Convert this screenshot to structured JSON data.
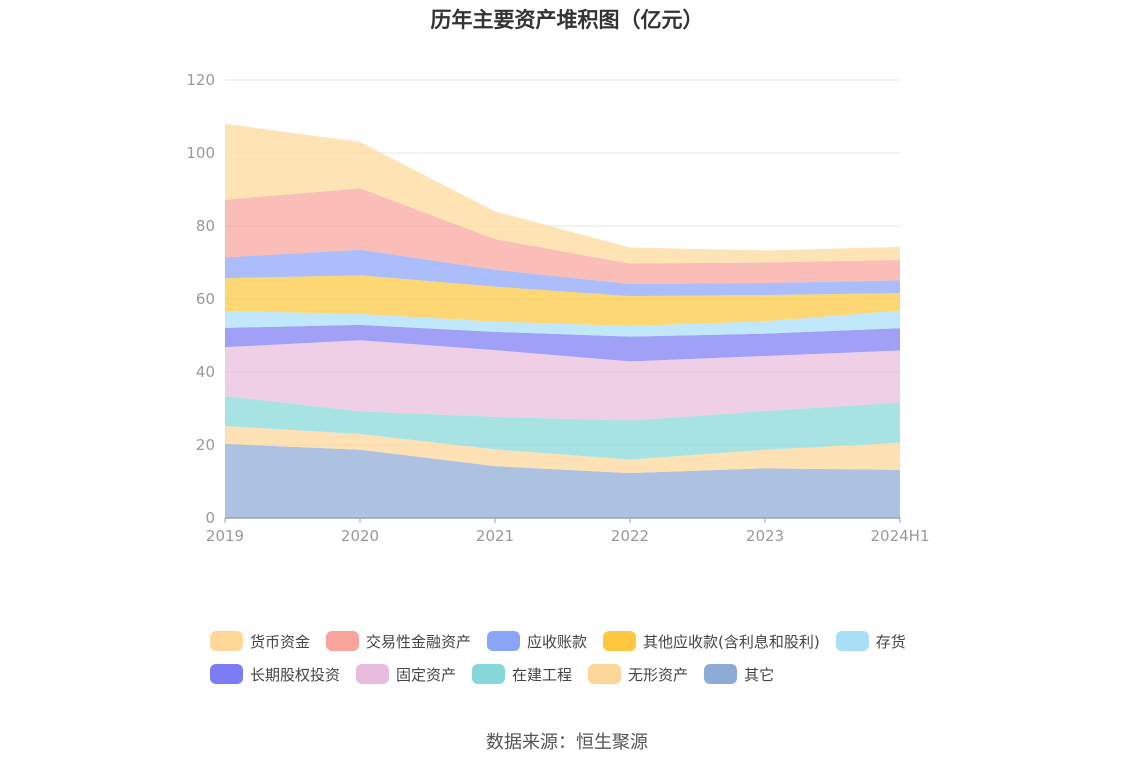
{
  "chart_data": {
    "type": "area",
    "stacked": true,
    "title": "历年主要资产堆积图（亿元）",
    "source": "数据来源：恒生聚源",
    "categories": [
      "2019",
      "2020",
      "2021",
      "2022",
      "2023",
      "2024H1"
    ],
    "ylim": [
      0,
      120
    ],
    "yticks": [
      "0",
      "20",
      "40",
      "60",
      "80",
      "100",
      "120"
    ],
    "grid": true,
    "legend_position": "bottom",
    "series": [
      {
        "name": "其它",
        "color": "#8eaad6",
        "values": [
          20.3,
          18.7,
          14.2,
          12.3,
          13.6,
          13.2
        ]
      },
      {
        "name": "无形资产",
        "color": "#fdd799",
        "values": [
          4.9,
          4.3,
          4.6,
          3.7,
          5.1,
          7.4
        ]
      },
      {
        "name": "在建工程",
        "color": "#86d8d8",
        "values": [
          8.2,
          6.2,
          8.9,
          10.7,
          10.6,
          11.0
        ]
      },
      {
        "name": "固定资产",
        "color": "#e8bcdc",
        "values": [
          13.4,
          19.5,
          18.3,
          16.2,
          15.1,
          14.3
        ]
      },
      {
        "name": "长期股权投资",
        "color": "#7c7cf4",
        "values": [
          5.3,
          4.2,
          5.0,
          6.8,
          6.1,
          6.1
        ]
      },
      {
        "name": "存货",
        "color": "#a8def8",
        "values": [
          4.6,
          3.0,
          2.8,
          2.9,
          3.4,
          4.8
        ]
      },
      {
        "name": "其他应收款(含利息和股利)",
        "color": "#fdc840",
        "values": [
          9.0,
          10.6,
          9.6,
          8.2,
          7.2,
          4.8
        ]
      },
      {
        "name": "应收账款",
        "color": "#8aa4f8",
        "values": [
          5.7,
          7.0,
          4.6,
          3.3,
          3.3,
          3.5
        ]
      },
      {
        "name": "交易性金融资产",
        "color": "#f8a49c",
        "values": [
          15.8,
          16.8,
          8.4,
          5.6,
          5.6,
          5.6
        ]
      },
      {
        "name": "货币资金",
        "color": "#fdd898",
        "values": [
          20.8,
          12.7,
          7.6,
          4.4,
          3.3,
          3.6
        ]
      }
    ],
    "legend_order": [
      "货币资金",
      "交易性金融资产",
      "应收账款",
      "其他应收款(含利息和股利)",
      "存货",
      "长期股权投资",
      "固定资产",
      "在建工程",
      "无形资产",
      "其它"
    ]
  }
}
